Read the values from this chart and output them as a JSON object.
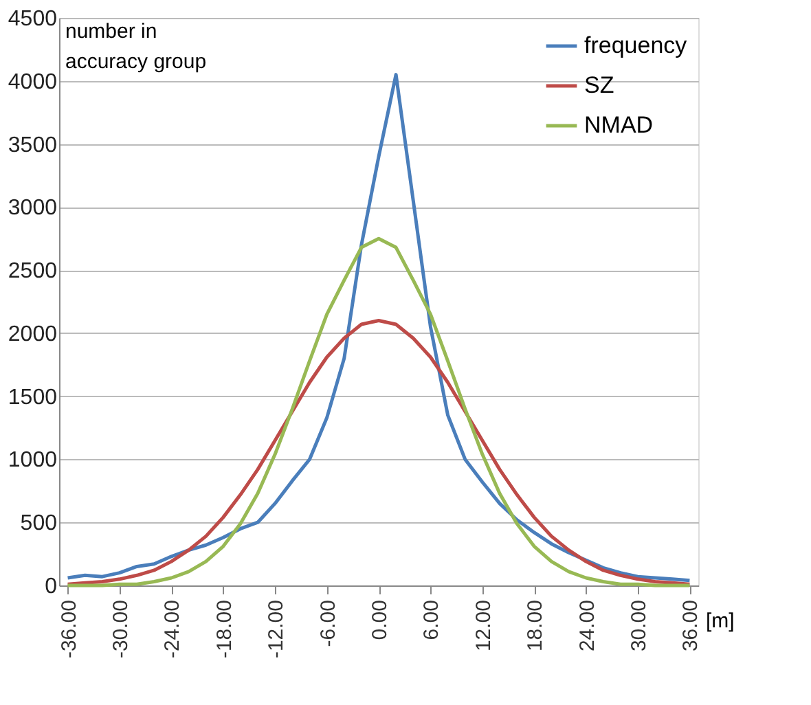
{
  "chart_data": {
    "type": "line",
    "ylabel": "number in\naccuracy group",
    "xlabel": "[m]",
    "x": [
      -36,
      -34,
      -32,
      -30,
      -28,
      -26,
      -24,
      -22,
      -20,
      -18,
      -16,
      -14,
      -12,
      -10,
      -8,
      -6,
      -4,
      -2,
      0,
      2,
      4,
      6,
      8,
      10,
      12,
      14,
      16,
      18,
      20,
      22,
      24,
      26,
      28,
      30,
      32,
      34,
      36
    ],
    "series": [
      {
        "name": "frequency",
        "color": "#4a7ebb",
        "values": [
          60,
          80,
          70,
          100,
          150,
          170,
          230,
          280,
          320,
          380,
          450,
          500,
          650,
          830,
          1000,
          1330,
          1800,
          2700,
          3400,
          4050,
          3050,
          2050,
          1350,
          1000,
          820,
          650,
          520,
          420,
          330,
          260,
          200,
          140,
          100,
          70,
          60,
          50,
          40
        ]
      },
      {
        "name": "SZ",
        "color": "#be4b48",
        "values": [
          10,
          20,
          30,
          50,
          80,
          120,
          190,
          280,
          390,
          540,
          720,
          920,
          1150,
          1380,
          1610,
          1810,
          1960,
          2070,
          2100,
          2070,
          1960,
          1810,
          1610,
          1380,
          1150,
          920,
          720,
          540,
          390,
          280,
          190,
          120,
          80,
          50,
          30,
          20,
          10
        ]
      },
      {
        "name": "NMAD",
        "color": "#98b954",
        "values": [
          0,
          0,
          0,
          10,
          10,
          30,
          60,
          110,
          190,
          310,
          490,
          730,
          1040,
          1400,
          1780,
          2150,
          2420,
          2680,
          2750,
          2680,
          2420,
          2150,
          1780,
          1400,
          1040,
          730,
          490,
          310,
          190,
          110,
          60,
          30,
          10,
          10,
          0,
          0,
          0
        ]
      }
    ],
    "xlim": [
      -37,
      37
    ],
    "xticks": [
      {
        "value": -36,
        "label": "-36.00"
      },
      {
        "value": -30,
        "label": "-30.00"
      },
      {
        "value": -24,
        "label": "-24.00"
      },
      {
        "value": -18,
        "label": "-18.00"
      },
      {
        "value": -12,
        "label": "-12.00"
      },
      {
        "value": -6,
        "label": "-6.00"
      },
      {
        "value": 0,
        "label": "0.00"
      },
      {
        "value": 6,
        "label": "6.00"
      },
      {
        "value": 12,
        "label": "12.00"
      },
      {
        "value": 18,
        "label": "18.00"
      },
      {
        "value": 24,
        "label": "24.00"
      },
      {
        "value": 30,
        "label": "30.00"
      },
      {
        "value": 36,
        "label": "36.00"
      }
    ],
    "ylim": [
      0,
      4500
    ],
    "yticks": [
      0,
      500,
      1000,
      1500,
      2000,
      2500,
      3000,
      3500,
      4000,
      4500
    ],
    "grid": "y",
    "legend": "top right",
    "marker": "none",
    "line_style": "solid"
  }
}
